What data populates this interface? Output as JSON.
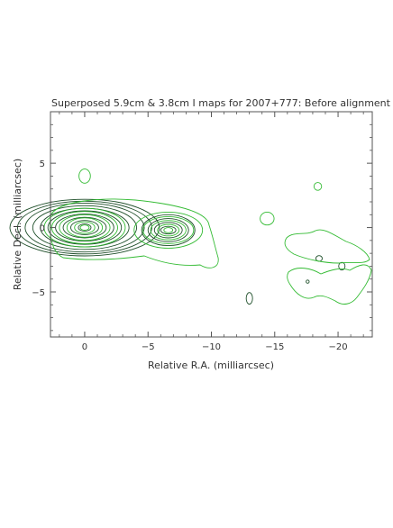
{
  "chart_data": {
    "type": "contour",
    "title": "Superposed 5.9cm & 3.8cm I maps for 2007+777: Before alignment",
    "xlabel": "Relative R.A. (milliarcsec)",
    "ylabel": "Relative Decl. (milliarcsec)",
    "xlim": [
      2.7,
      -22.7
    ],
    "ylim": [
      -8.5,
      9.0
    ],
    "x_ticks": [
      {
        "value": 0,
        "label": "0"
      },
      {
        "value": -5,
        "label": "−5"
      },
      {
        "value": -10,
        "label": "−10"
      },
      {
        "value": -15,
        "label": "−15"
      },
      {
        "value": -20,
        "label": "−20"
      }
    ],
    "y_ticks": [
      {
        "value": 5,
        "label": "5"
      },
      {
        "value": 0,
        "label": "0"
      },
      {
        "value": -5,
        "label": "−5"
      }
    ],
    "grid": false,
    "colors": {
      "map_5_9cm": "#1f4f2a",
      "map_3_8cm": "#33bb33",
      "axes": "#555555"
    },
    "series": [
      {
        "color_key": "map_5_9cm",
        "components": [
          {
            "center": [
              0,
              0
            ],
            "nested_levels": [
              {
                "rx": 0.5,
                "ry": 0.28
              },
              {
                "rx": 1.1,
                "ry": 0.55
              },
              {
                "rx": 1.7,
                "ry": 0.8
              },
              {
                "rx": 2.3,
                "ry": 1.05
              },
              {
                "rx": 2.9,
                "ry": 1.3
              },
              {
                "rx": 3.5,
                "ry": 1.5
              },
              {
                "rx": 4.1,
                "ry": 1.7
              },
              {
                "rx": 4.7,
                "ry": 1.9
              },
              {
                "rx": 5.3,
                "ry": 2.05
              },
              {
                "rx": 5.9,
                "ry": 2.2
              }
            ]
          },
          {
            "center": [
              -6.6,
              -0.2
            ],
            "nested_levels": [
              {
                "rx": 0.6,
                "ry": 0.3
              },
              {
                "rx": 1.1,
                "ry": 0.6
              },
              {
                "rx": 1.6,
                "ry": 0.9
              },
              {
                "rx": 2.1,
                "ry": 1.2
              }
            ]
          },
          {
            "center": [
              -13.0,
              -5.5
            ],
            "nested_levels": [
              {
                "rx": 0.25,
                "ry": 0.45
              }
            ]
          },
          {
            "center": [
              -18.5,
              -2.4
            ],
            "nested_levels": [
              {
                "rx": 0.25,
                "ry": 0.22
              }
            ]
          },
          {
            "center": [
              -20.3,
              -3.0
            ],
            "nested_levels": [
              {
                "rx": 0.25,
                "ry": 0.3
              }
            ]
          },
          {
            "center": [
              -17.6,
              -4.2
            ],
            "nested_levels": [
              {
                "rx": 0.12,
                "ry": 0.12
              }
            ]
          }
        ]
      },
      {
        "color_key": "map_3_8cm",
        "components": [
          {
            "center": [
              0,
              0
            ],
            "nested_levels": [
              {
                "rx": 0.35,
                "ry": 0.2
              },
              {
                "rx": 0.8,
                "ry": 0.45
              },
              {
                "rx": 1.4,
                "ry": 0.75
              },
              {
                "rx": 2.0,
                "ry": 1.0
              },
              {
                "rx": 2.6,
                "ry": 1.25
              },
              {
                "rx": 3.2,
                "ry": 1.5
              }
            ]
          },
          {
            "center": [
              -6.6,
              -0.2
            ],
            "nested_levels": [
              {
                "rx": 0.35,
                "ry": 0.2
              },
              {
                "rx": 0.85,
                "ry": 0.45
              },
              {
                "rx": 1.4,
                "ry": 0.75
              },
              {
                "rx": 2.0,
                "ry": 1.05
              },
              {
                "rx": 2.7,
                "ry": 1.4
              }
            ]
          },
          {
            "center": [
              0,
              4.0
            ],
            "nested_levels": [
              {
                "rx": 0.45,
                "ry": 0.55
              }
            ]
          },
          {
            "center": [
              -14.4,
              0.7
            ],
            "nested_levels": [
              {
                "rx": 0.55,
                "ry": 0.5
              }
            ]
          },
          {
            "center": [
              -18.4,
              3.2
            ],
            "nested_levels": [
              {
                "rx": 0.3,
                "ry": 0.3
              }
            ]
          }
        ]
      }
    ]
  }
}
